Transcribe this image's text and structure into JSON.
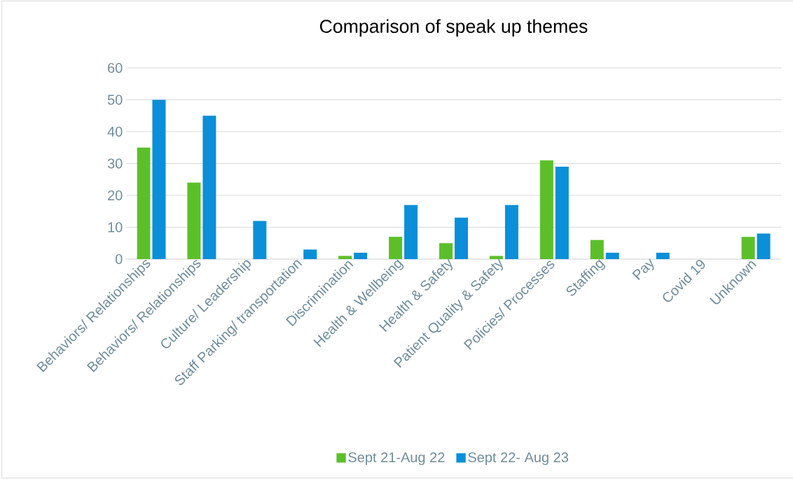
{
  "chart_data": {
    "type": "bar",
    "title": "Comparison of speak up themes",
    "categories": [
      "Behaviors/ Relationships",
      "Behaviors/ Relationships",
      "Culture/ Leadership",
      "Staff Parking/ transportation",
      "Discrimination",
      "Health & Wellbeing",
      "Health & Safety",
      "Patient Quality & Safety",
      "Policies/ Processes",
      "Staffing",
      "Pay",
      "Covid 19",
      "Unknown"
    ],
    "series": [
      {
        "name": "Sept 21-Aug 22",
        "color": "#5cbf2a",
        "values": [
          35,
          24,
          0,
          0,
          1,
          7,
          5,
          1,
          31,
          6,
          0,
          0,
          7
        ]
      },
      {
        "name": "Sept 22- Aug 23",
        "color": "#0a8fd8",
        "values": [
          50,
          45,
          12,
          3,
          2,
          17,
          13,
          17,
          29,
          2,
          2,
          0,
          8
        ]
      }
    ],
    "ylim": [
      0,
      60
    ],
    "yticks": [
      0,
      10,
      20,
      30,
      40,
      50,
      60
    ],
    "grid": "y",
    "legend": "bottom"
  }
}
